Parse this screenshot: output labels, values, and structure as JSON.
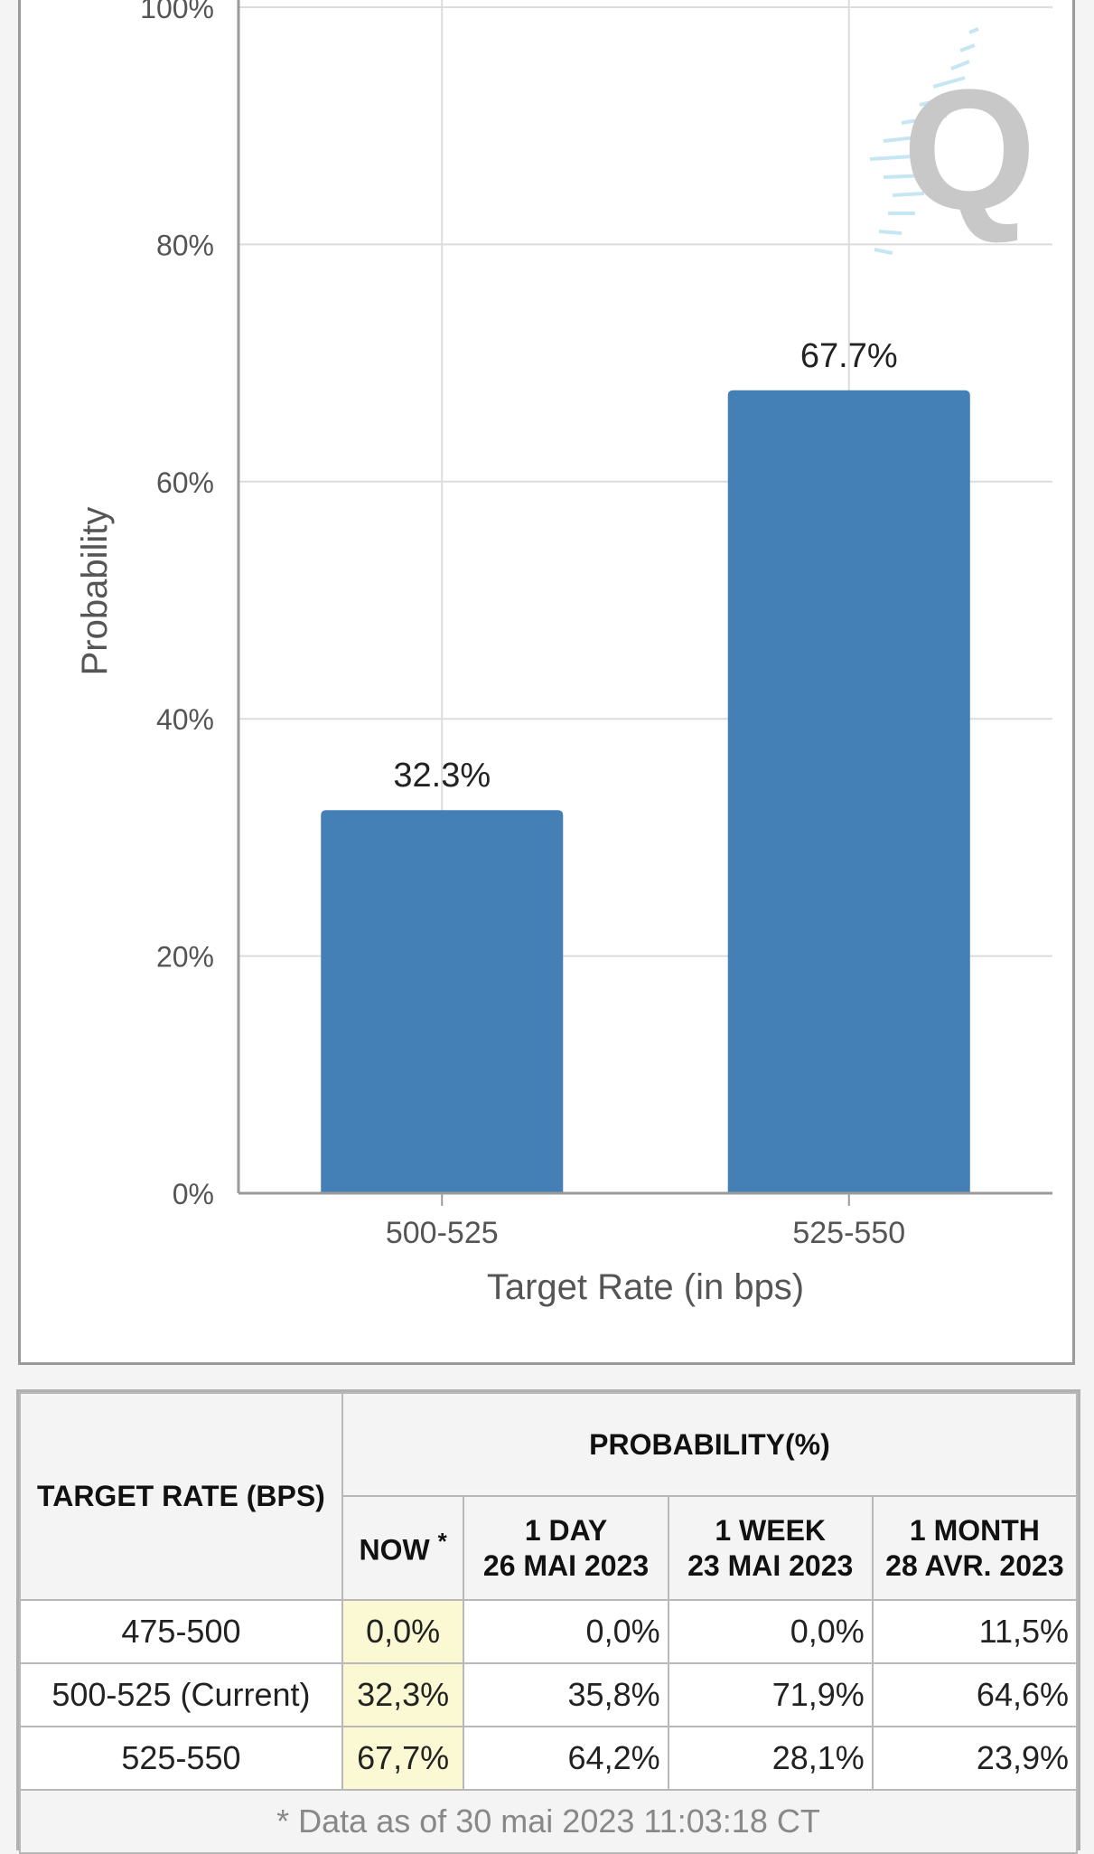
{
  "chart_data": {
    "type": "bar",
    "categories": [
      "500-525",
      "525-550"
    ],
    "values": [
      32.3,
      67.7
    ],
    "data_labels": [
      "32.3%",
      "67.7%"
    ],
    "xlabel": "Target Rate (in bps)",
    "ylabel": "Probability",
    "ylim": [
      0,
      100
    ],
    "yticks": [
      0,
      20,
      40,
      60,
      80,
      100
    ],
    "ytick_labels": [
      "0%",
      "20%",
      "40%",
      "60%",
      "80%",
      "100%"
    ],
    "grid": true,
    "bar_color": "#4480b5"
  },
  "watermark": {
    "letter": "Q",
    "color": "#c8c8c8"
  },
  "table": {
    "target_rate_header": "TARGET RATE (BPS)",
    "probability_header": "PROBABILITY(%)",
    "now_header": "NOW",
    "now_mark": "*",
    "columns": [
      {
        "line1": "1 DAY",
        "line2": "26 MAI 2023"
      },
      {
        "line1": "1 WEEK",
        "line2": "23 MAI 2023"
      },
      {
        "line1": "1 MONTH",
        "line2": "28 AVR. 2023"
      }
    ],
    "rows": [
      {
        "rate": "475-500",
        "now": "0,0%",
        "day": "0,0%",
        "week": "0,0%",
        "month": "11,5%"
      },
      {
        "rate": "500-525 (Current)",
        "now": "32,3%",
        "day": "35,8%",
        "week": "71,9%",
        "month": "64,6%"
      },
      {
        "rate": "525-550",
        "now": "67,7%",
        "day": "64,2%",
        "week": "28,1%",
        "month": "23,9%"
      }
    ],
    "footer": "* Data as of 30 mai 2023 11:03:18 CT"
  }
}
